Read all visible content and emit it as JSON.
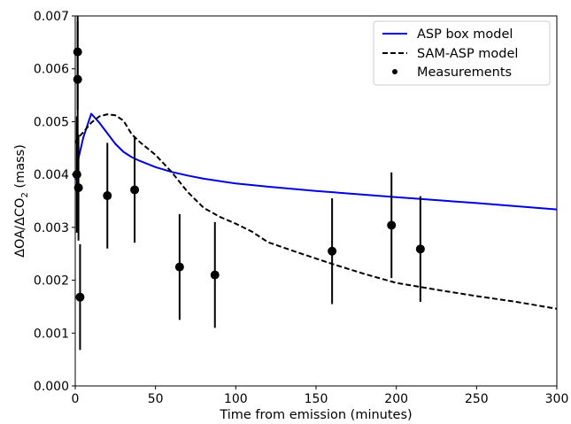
{
  "chart_data": {
    "type": "line",
    "xlabel": "Time from emission (minutes)",
    "ylabel_main": "ΔOA/ΔCO",
    "ylabel_sub": "2",
    "ylabel_suffix": " (mass)",
    "xlim": [
      0,
      300
    ],
    "ylim": [
      0,
      0.007
    ],
    "x_ticks": [
      0,
      50,
      100,
      150,
      200,
      250,
      300
    ],
    "x_tick_labels": [
      "0",
      "50",
      "100",
      "150",
      "200",
      "250",
      "300"
    ],
    "y_ticks": [
      0,
      0.001,
      0.002,
      0.003,
      0.004,
      0.005,
      0.006,
      0.007
    ],
    "y_tick_labels": [
      "0.000",
      "0.001",
      "0.002",
      "0.003",
      "0.004",
      "0.005",
      "0.006",
      "0.007"
    ],
    "grid": false,
    "legend_position": "top-right",
    "legend": [
      "ASP box model",
      "SAM-ASP model",
      "Measurements"
    ],
    "series": [
      {
        "name": "ASP box model",
        "color": "#0000dd",
        "style": "solid",
        "x": [
          0,
          1,
          2,
          5,
          10,
          15,
          20,
          25,
          30,
          35,
          40,
          50,
          60,
          70,
          80,
          100,
          120,
          150,
          200,
          250,
          300
        ],
        "y": [
          0.0039,
          0.004,
          0.0043,
          0.0047,
          0.00515,
          0.00498,
          0.00478,
          0.00458,
          0.00443,
          0.00433,
          0.00426,
          0.00414,
          0.00405,
          0.00398,
          0.00392,
          0.00383,
          0.00377,
          0.00369,
          0.00357,
          0.00346,
          0.00334
        ]
      },
      {
        "name": "SAM-ASP model",
        "color": "#000000",
        "style": "dashed",
        "x": [
          0,
          2,
          5,
          10,
          15,
          20,
          25,
          30,
          35,
          40,
          50,
          60,
          70,
          80,
          90,
          100,
          110,
          120,
          140,
          160,
          180,
          200,
          225,
          250,
          275,
          300
        ],
        "y": [
          0.0046,
          0.0047,
          0.0048,
          0.00498,
          0.0051,
          0.00514,
          0.00512,
          0.00502,
          0.00477,
          0.00462,
          0.00437,
          0.00405,
          0.00367,
          0.00337,
          0.0032,
          0.00307,
          0.00292,
          0.00272,
          0.00251,
          0.00231,
          0.00212,
          0.00195,
          0.00182,
          0.0017,
          0.00159,
          0.00146
        ]
      }
    ],
    "measurements": {
      "name": "Measurements",
      "color": "#000000",
      "points": [
        {
          "x": 1.0,
          "y": 0.004,
          "err": 0.0011
        },
        {
          "x": 1.5,
          "y": 0.0058,
          "err": 0.0011
        },
        {
          "x": 1.5,
          "y": 0.00632,
          "err": 0.0011
        },
        {
          "x": 2.0,
          "y": 0.00375,
          "err": 0.001
        },
        {
          "x": 3.0,
          "y": 0.00168,
          "err": 0.001
        },
        {
          "x": 20,
          "y": 0.0036,
          "err": 0.001
        },
        {
          "x": 37,
          "y": 0.00371,
          "err": 0.001
        },
        {
          "x": 65,
          "y": 0.00225,
          "err": 0.001
        },
        {
          "x": 87,
          "y": 0.0021,
          "err": 0.001
        },
        {
          "x": 160,
          "y": 0.00255,
          "err": 0.001
        },
        {
          "x": 197,
          "y": 0.00304,
          "err": 0.001
        },
        {
          "x": 215,
          "y": 0.00259,
          "err": 0.001
        }
      ]
    }
  }
}
